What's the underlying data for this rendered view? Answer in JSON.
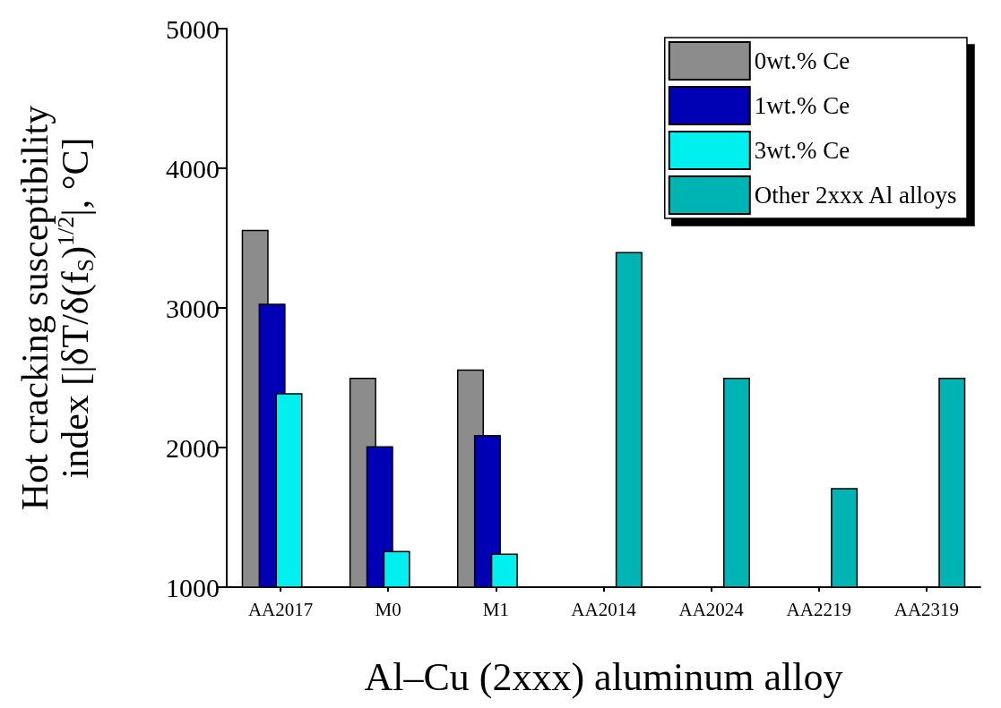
{
  "chart_data": {
    "type": "bar",
    "xlabel": "Al–Cu (2xxx) aluminum alloy",
    "ylabel": "Hot cracking susceptibility index [|δT/δ(f$_{S}$)$^{1/2}$|, °C]",
    "categories": [
      "AA2017",
      "M0",
      "M1",
      "AA2014",
      "AA2024",
      "AA2219",
      "AA2319"
    ],
    "series": [
      {
        "name": "0wt.% Ce",
        "color": "#8c8c8c",
        "values": [
          3560,
          2500,
          2560,
          null,
          null,
          null,
          null
        ]
      },
      {
        "name": "1wt.% Ce",
        "color": "#0000b4",
        "values": [
          3030,
          2010,
          2090,
          null,
          null,
          null,
          null
        ]
      },
      {
        "name": "3wt.% Ce",
        "color": "#00f0f0",
        "values": [
          2390,
          1260,
          1240,
          null,
          null,
          null,
          null
        ]
      },
      {
        "name": "Other 2xxx Al alloys",
        "color": "#00b4b4",
        "values": [
          null,
          null,
          null,
          3400,
          2500,
          1710,
          2500
        ]
      }
    ],
    "ylim": [
      1000,
      5000
    ],
    "yticks": [
      1000,
      2000,
      3000,
      4000,
      5000
    ],
    "legend": "top right"
  }
}
